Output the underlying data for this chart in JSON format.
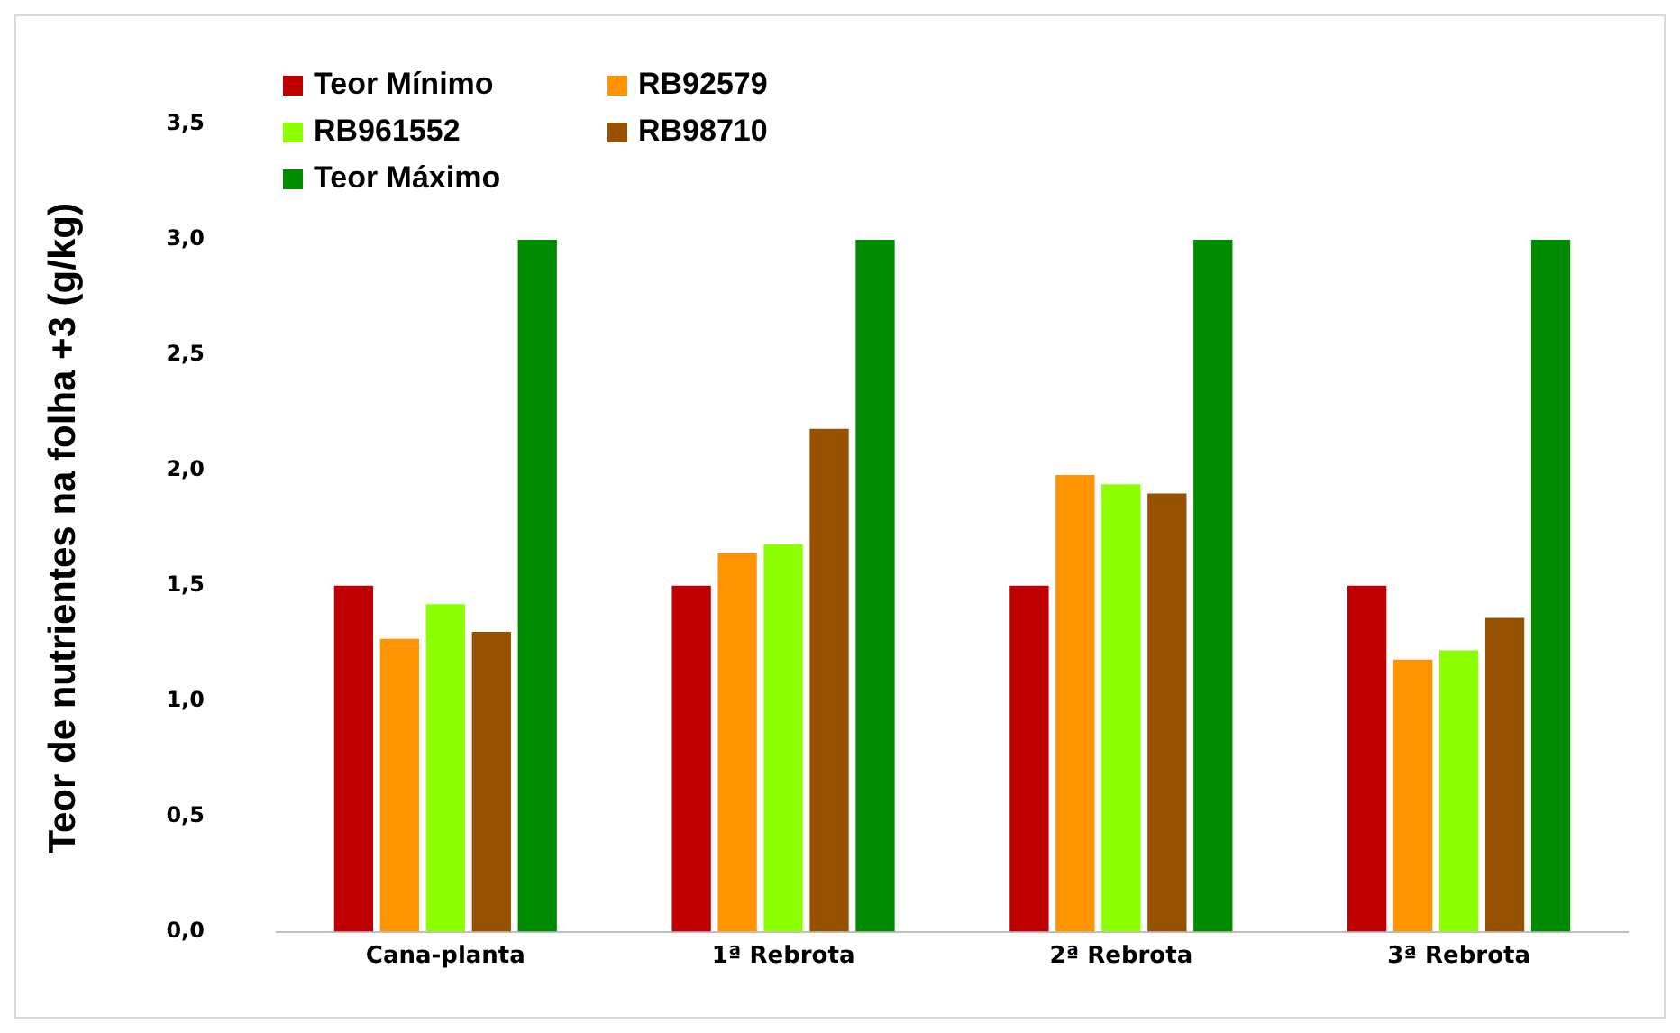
{
  "chart_data": {
    "type": "bar",
    "ylabel": "Teor de nutrientes na folha +3 (g/kg)",
    "categories": [
      "Cana-planta",
      "1ª Rebrota",
      "2ª Rebrota",
      "3ª Rebrota"
    ],
    "series": [
      {
        "name": "Teor Mínimo",
        "color": "#c00000",
        "values": [
          1.5,
          1.5,
          1.5,
          1.5
        ]
      },
      {
        "name": "RB92579",
        "color": "#ff9300",
        "values": [
          1.27,
          1.64,
          1.98,
          1.18
        ]
      },
      {
        "name": "RB961552",
        "color": "#8cff00",
        "values": [
          1.42,
          1.68,
          1.94,
          1.22
        ]
      },
      {
        "name": "RB98710",
        "color": "#975200",
        "values": [
          1.3,
          2.18,
          1.9,
          1.36
        ]
      },
      {
        "name": "Teor Máximo",
        "color": "#008c00",
        "values": [
          3,
          3,
          3,
          3
        ]
      }
    ],
    "ylim": [
      0,
      3.5
    ],
    "yticks": [
      {
        "value": 0,
        "label": "0,0"
      },
      {
        "value": 0.5,
        "label": "0,5"
      },
      {
        "value": 1,
        "label": "1,0"
      },
      {
        "value": 1.5,
        "label": "1,5"
      },
      {
        "value": 2,
        "label": "2,0"
      },
      {
        "value": 2.5,
        "label": "2,5"
      },
      {
        "value": 3,
        "label": "3,0"
      },
      {
        "value": 3.5,
        "label": "3,5"
      }
    ],
    "grid": false,
    "legend": "top left"
  }
}
